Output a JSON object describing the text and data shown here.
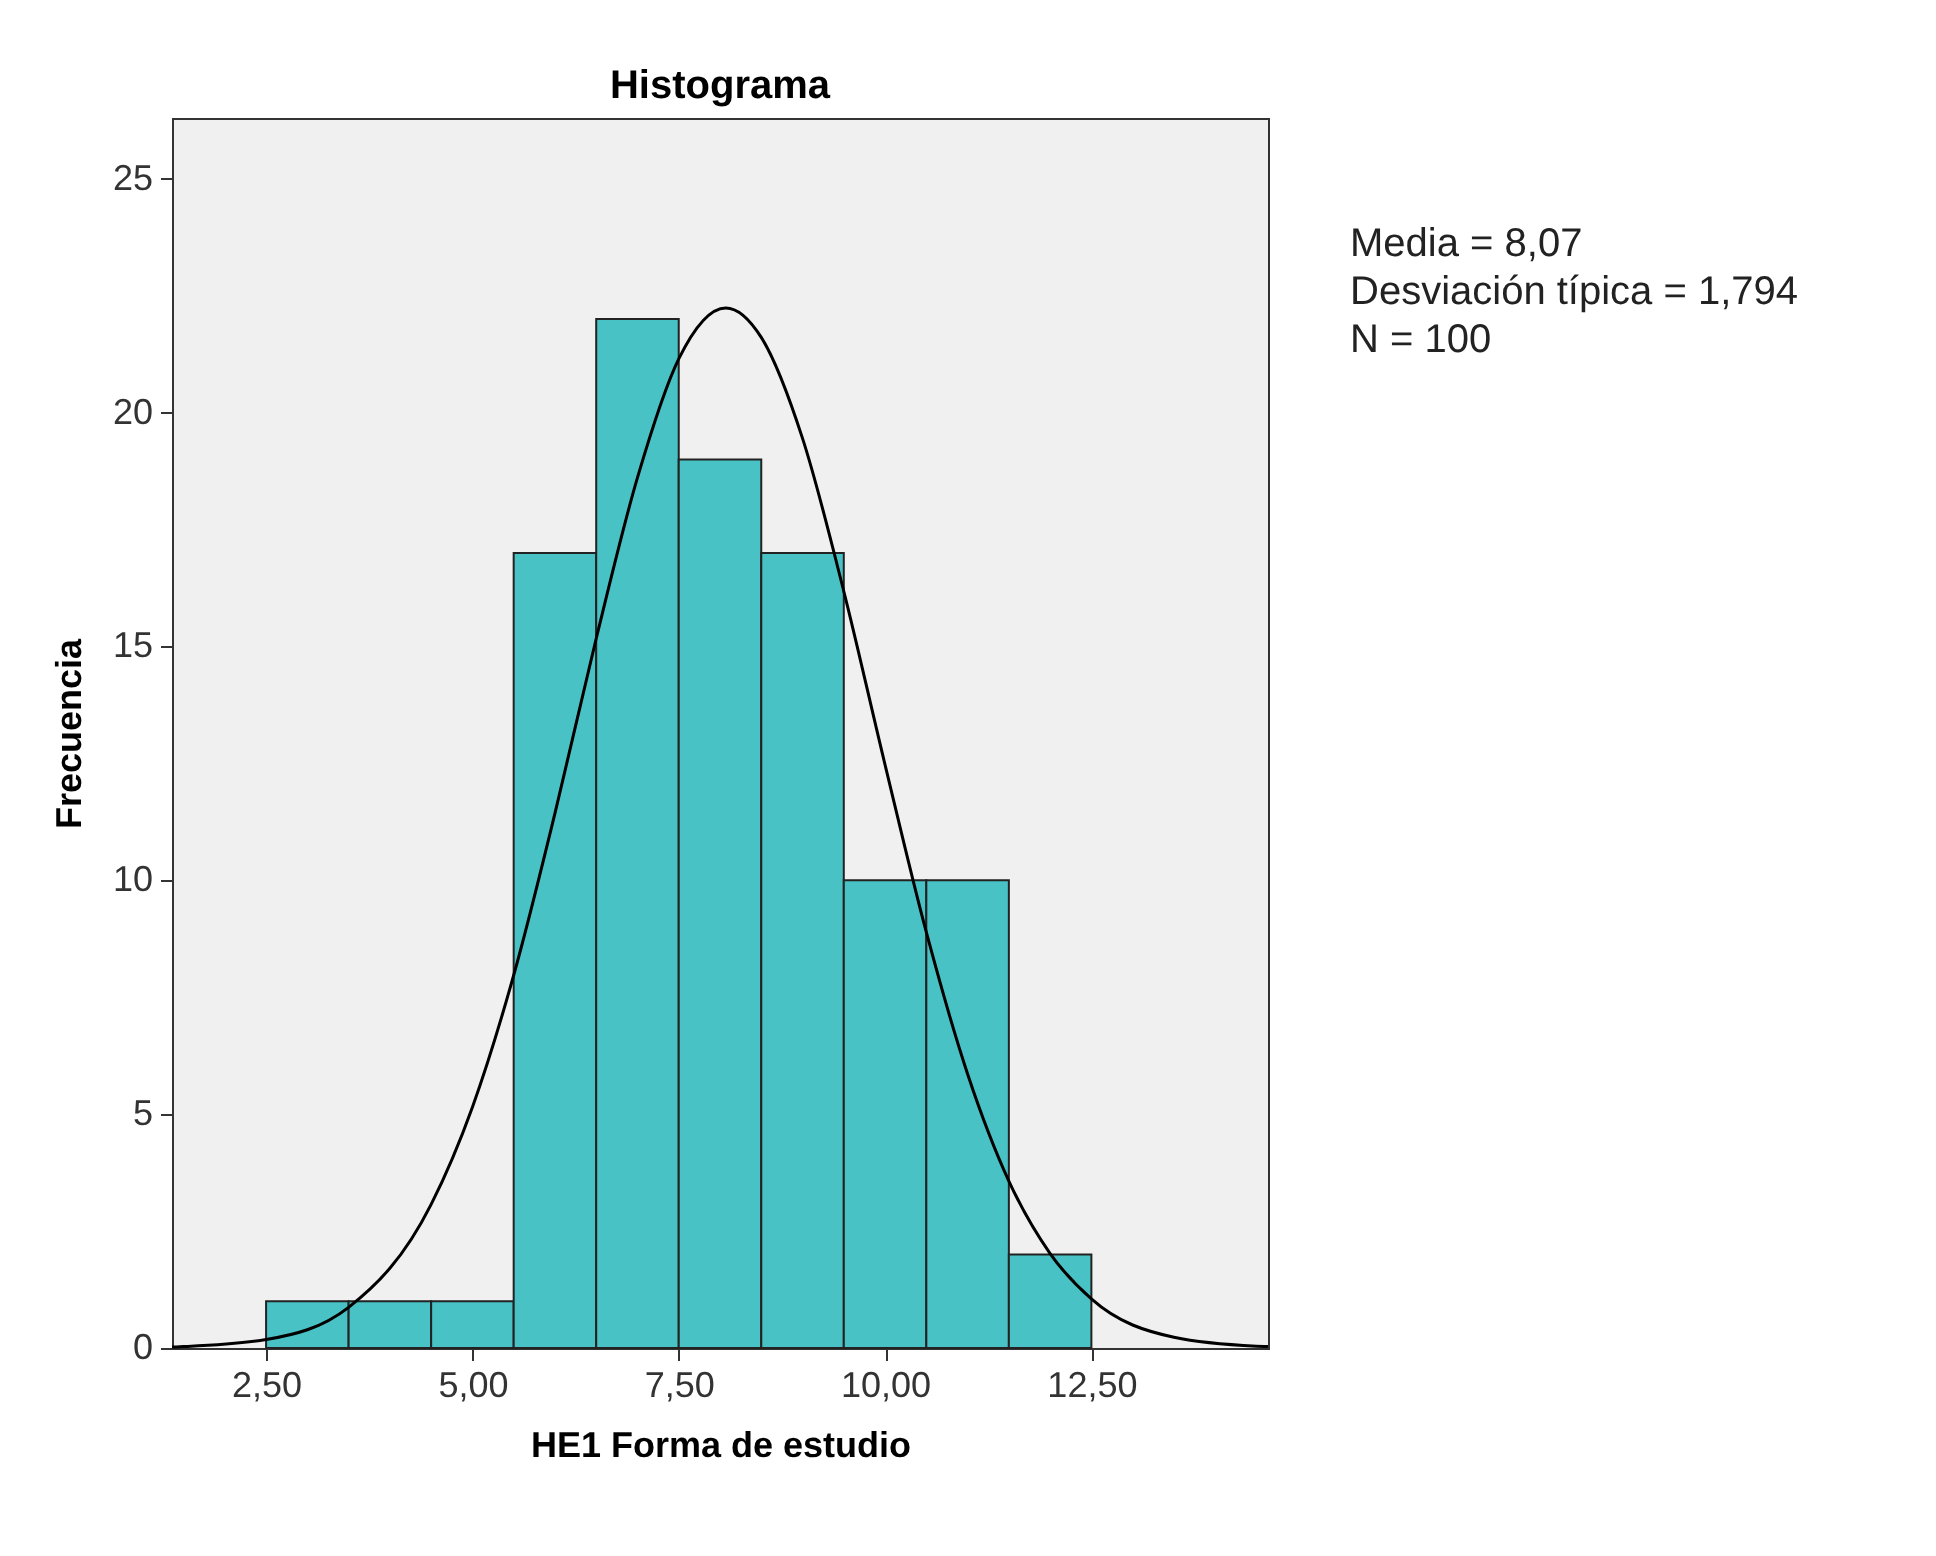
{
  "chart_data": {
    "type": "histogram",
    "title": "Histograma",
    "xlabel": "HE1 Forma de estudio",
    "ylabel": "Frecuencia",
    "bins": [
      2.5,
      3.5,
      4.5,
      5.5,
      6.5,
      7.5,
      8.5,
      9.5,
      10.5,
      11.5,
      12.5
    ],
    "values": [
      1,
      1,
      1,
      17,
      22,
      19,
      17,
      10,
      10,
      2
    ],
    "color": "#48c2c5",
    "series": [
      {
        "type": "line",
        "color": "#000000",
        "x": [
          1.36,
          1.5,
          2.5,
          3.5,
          4.5,
          5.0,
          5.5,
          6.0,
          6.5,
          7.0,
          7.5,
          8.07,
          8.5,
          9.0,
          9.5,
          10.0,
          10.5,
          11.0,
          11.5,
          12.0,
          12.5,
          13.5,
          14.5,
          14.64
        ],
        "values": [
          0.02,
          0.03,
          0.18,
          0.87,
          3.07,
          5.15,
          7.97,
          11.43,
          15.17,
          18.61,
          21.15,
          22.24,
          21.61,
          19.45,
          16.18,
          12.47,
          8.89,
          5.86,
          3.57,
          2.02,
          1.05,
          0.23,
          0.04,
          0.03
        ]
      }
    ],
    "xlim": [
      1.36,
      14.64
    ],
    "xticks": [
      {
        "value": 2.5,
        "label": "2,50"
      },
      {
        "value": 5,
        "label": "5,00"
      },
      {
        "value": 7.5,
        "label": "7,50"
      },
      {
        "value": 10,
        "label": "10,00"
      },
      {
        "value": 12.5,
        "label": "12,50"
      }
    ],
    "ylim": [
      0,
      26.3
    ],
    "yticks": [
      0,
      5,
      10,
      15,
      20,
      25
    ],
    "grid": false,
    "annotations": [
      "Media = 8,07",
      "Desviación típica = 1,794",
      "N = 100"
    ]
  }
}
